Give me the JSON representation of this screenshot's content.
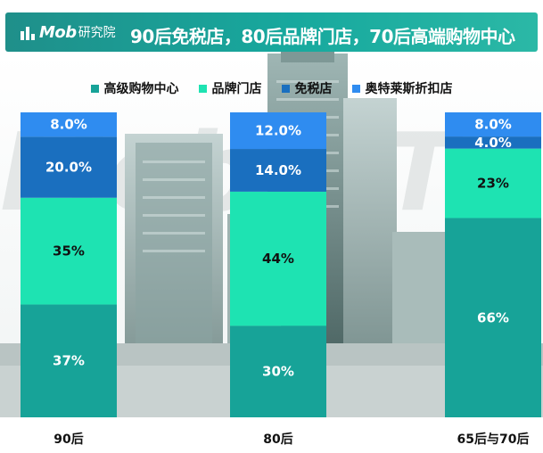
{
  "header": {
    "logo_brand": "Mob",
    "logo_sub": "研究院",
    "title": "90后免税店，80后品牌门店，70后高端购物中心"
  },
  "legend": {
    "items": [
      {
        "label": "高级购物中心",
        "color": "#17a398"
      },
      {
        "label": "品牌门店",
        "color": "#1ee3b2"
      },
      {
        "label": "免税店",
        "color": "#1a6fbf"
      },
      {
        "label": "奥特莱斯折扣店",
        "color": "#2f8cf0"
      }
    ]
  },
  "colors": {
    "header_bg": "#1f8f8a",
    "label_dark": "#111111",
    "label_light": "#ffffff"
  },
  "chart_data": {
    "type": "bar",
    "stacked": true,
    "categories": [
      "90后",
      "80后",
      "65后与70后"
    ],
    "series": [
      {
        "name": "高级购物中心",
        "values": [
          37,
          30,
          66
        ],
        "labels": [
          "37%",
          "30%",
          "66%"
        ],
        "color": "#17a398",
        "label_color": "#ffffff"
      },
      {
        "name": "品牌门店",
        "values": [
          35,
          44,
          23
        ],
        "labels": [
          "35%",
          "44%",
          "23%"
        ],
        "color": "#1ee3b2",
        "label_color": "#111111"
      },
      {
        "name": "免税店",
        "values": [
          20,
          14,
          4
        ],
        "labels": [
          "20.0%",
          "14.0%",
          "4.0%"
        ],
        "color": "#1a6fbf",
        "label_color": "#ffffff"
      },
      {
        "name": "奥特莱斯折扣店",
        "values": [
          8,
          12,
          8
        ],
        "labels": [
          "8.0%",
          "12.0%",
          "8.0%"
        ],
        "color": "#2f8cf0",
        "label_color": "#ffffff"
      }
    ],
    "ylim": [
      0,
      100
    ],
    "xlabel": "",
    "ylabel": "",
    "title": "90后免税店，80后品牌门店，70后高端购物中心",
    "legend_position": "top",
    "grid": false
  }
}
